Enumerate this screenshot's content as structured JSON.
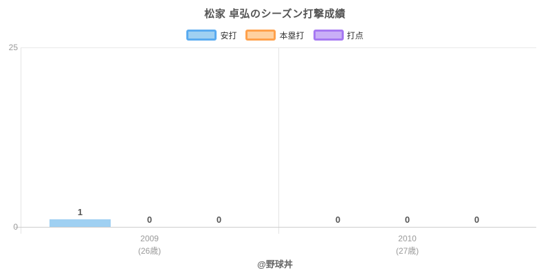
{
  "title": "松家 卓弘のシーズン打撃成績",
  "footer": "@野球丼",
  "colors": {
    "hits_fill": "#9fd0f2",
    "hits_border": "#5aabf0",
    "homerun_fill": "#ffd1a0",
    "homerun_border": "#ffa14c",
    "rbi_fill": "#c9aef7",
    "rbi_border": "#a678f2",
    "axis_line": "#cccccc",
    "grid_line": "#e8e8e8",
    "tick_text": "#999999",
    "value_text": "#555555",
    "title_text": "#555555",
    "legend_text": "#333333",
    "footer_text": "#666666"
  },
  "chart_data": {
    "type": "bar",
    "title": "松家 卓弘のシーズン打撃成績",
    "categories": [
      "2009",
      "2010"
    ],
    "category_sublabels": [
      "(26歳)",
      "(27歳)"
    ],
    "series": [
      {
        "name": "安打",
        "values": [
          1,
          0
        ],
        "fill": "#9fd0f2",
        "border": "#5aabf0"
      },
      {
        "name": "本塁打",
        "values": [
          0,
          0
        ],
        "fill": "#ffd1a0",
        "border": "#ffa14c"
      },
      {
        "name": "打点",
        "values": [
          0,
          0
        ],
        "fill": "#c9aef7",
        "border": "#a678f2"
      }
    ],
    "ylim": [
      0,
      25
    ],
    "yticks": [
      25,
      0
    ],
    "legend_position": "top-center",
    "value_labels": true,
    "grid": "horizontal-top-only"
  }
}
